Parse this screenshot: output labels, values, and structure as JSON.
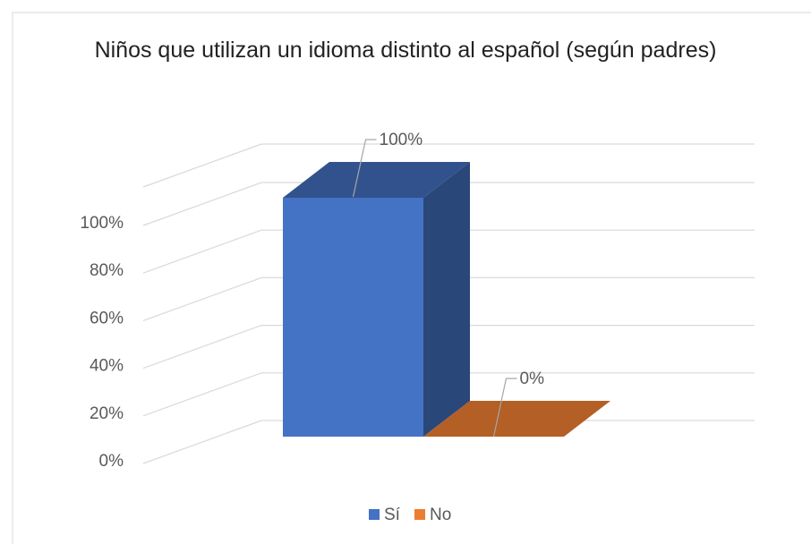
{
  "chart_data": {
    "type": "bar3d",
    "title": "Niños que utilizan un idioma distinto al español (según padres)",
    "series": [
      {
        "name": "Sí",
        "color": "#4472c4",
        "values": [
          100
        ],
        "value_labels": [
          "100%"
        ]
      },
      {
        "name": "No",
        "color": "#ed7d31",
        "values": [
          0
        ],
        "value_labels": [
          "0%"
        ]
      }
    ],
    "ylim": [
      0,
      100
    ],
    "yticks": [
      {
        "value": 0,
        "label": "0%"
      },
      {
        "value": 20,
        "label": "20%"
      },
      {
        "value": 40,
        "label": "40%"
      },
      {
        "value": 60,
        "label": "60%"
      },
      {
        "value": 80,
        "label": "80%"
      },
      {
        "value": 100,
        "label": "100%"
      }
    ],
    "grid": true,
    "legend": "bottom"
  }
}
